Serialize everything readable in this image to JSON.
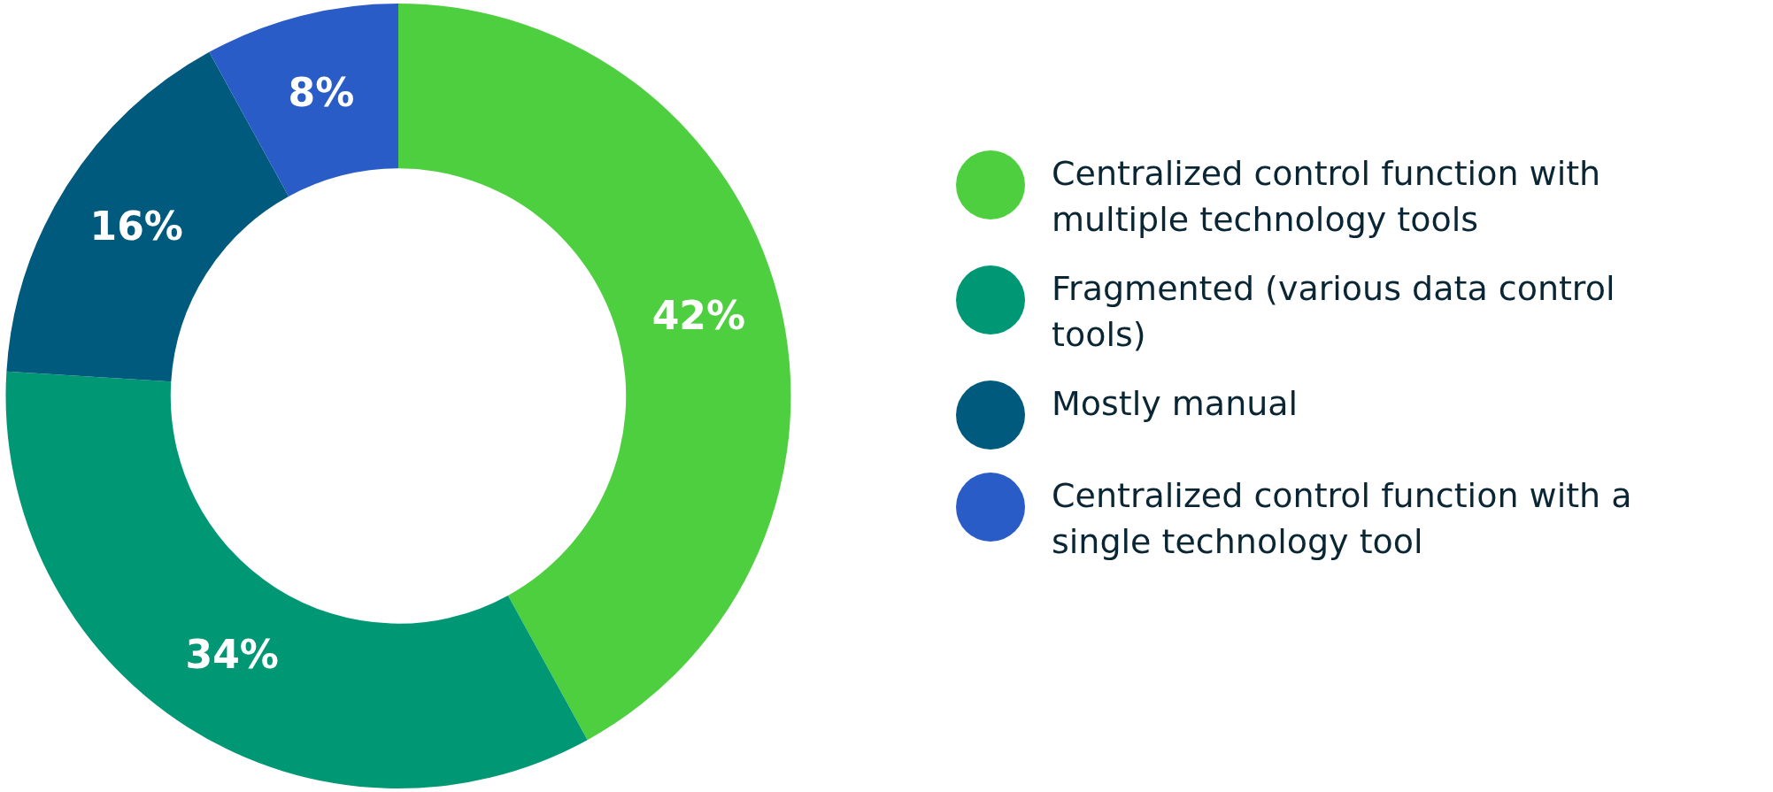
{
  "chart_data": {
    "type": "donut",
    "categories": [
      "Centralized control function with multiple technology tools",
      "Fragmented (various data control tools)",
      "Mostly manual",
      "Centralized control function with a single technology tool"
    ],
    "values": [
      42,
      34,
      16,
      8
    ],
    "value_labels": [
      "42%",
      "34%",
      "16%",
      "8%"
    ],
    "colors": [
      "#4ecf3f",
      "#009874",
      "#005a7e",
      "#2a5cc8"
    ],
    "legend": "right"
  }
}
